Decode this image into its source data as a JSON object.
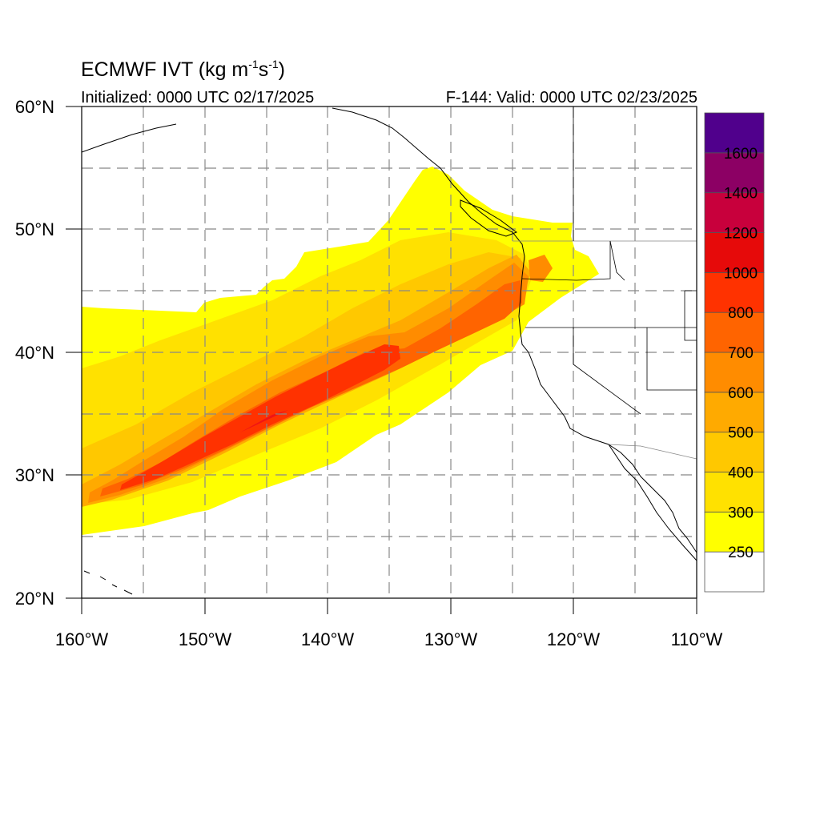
{
  "title": {
    "main": "ECMWF IVT (kg m",
    "exp1": "-1",
    "mid": "s",
    "exp2": "-1",
    "close": ")"
  },
  "subtitle_left": "Initialized: 0000 UTC 02/17/2025",
  "subtitle_right": "F-144: Valid: 0000 UTC 02/23/2025",
  "map": {
    "lon_range": [
      -160,
      -110
    ],
    "lat_range": [
      20,
      60
    ],
    "grid": "dashed gray every 5 degrees",
    "x_tick_labels": [
      "160°W",
      "150°W",
      "140°W",
      "130°W",
      "120°W",
      "110°W"
    ],
    "y_tick_labels": [
      "60°N",
      "50°N",
      "40°N",
      "30°N",
      "20°N"
    ]
  },
  "colorbar": {
    "labels": [
      "250",
      "300",
      "400",
      "500",
      "600",
      "700",
      "800",
      "1000",
      "1200",
      "1400",
      "1600"
    ],
    "colors": [
      "#ffffff",
      "#ffff00",
      "#ffe100",
      "#ffc800",
      "#ffaa00",
      "#ff8c00",
      "#ff6400",
      "#ff3200",
      "#e60a0a",
      "#c8003c",
      "#8c0064",
      "#50008c"
    ]
  }
}
